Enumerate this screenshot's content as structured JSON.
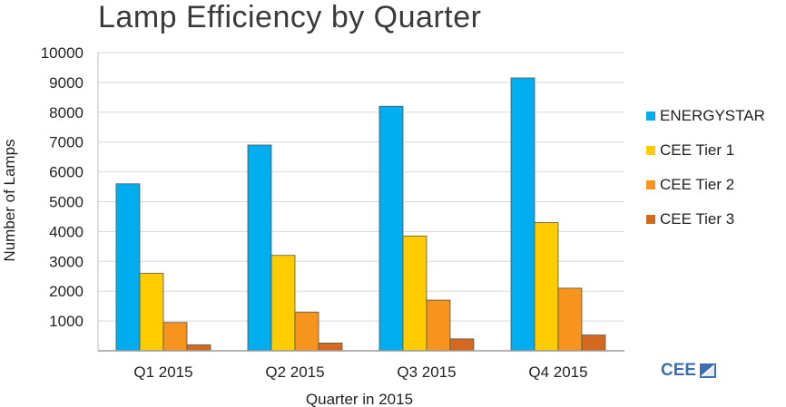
{
  "chart_data": {
    "type": "bar",
    "title": "Lamp Efficiency by Quarter",
    "xlabel": "Quarter in 2015",
    "ylabel": "Number of Lamps",
    "ylim": [
      0,
      10000
    ],
    "yticks": [
      1000,
      2000,
      3000,
      4000,
      5000,
      6000,
      7000,
      8000,
      9000,
      10000
    ],
    "ytick_labels": [
      "1000",
      "2000",
      "3000",
      "4000",
      "5000",
      "6000",
      "7000",
      "8000",
      "9000",
      "10000"
    ],
    "grid": true,
    "legend_position": "right",
    "categories": [
      "Q1 2015",
      "Q2 2015",
      "Q3 2015",
      "Q4 2015"
    ],
    "series": [
      {
        "name": "ENERGYSTAR",
        "color": "#00aeef",
        "values": [
          5600,
          6900,
          8200,
          9150
        ]
      },
      {
        "name": "CEE Tier 1",
        "color": "#ffcc00",
        "values": [
          2600,
          3200,
          3850,
          4300
        ]
      },
      {
        "name": "CEE Tier 2",
        "color": "#f7941d",
        "values": [
          950,
          1300,
          1700,
          2100
        ]
      },
      {
        "name": "CEE Tier 3",
        "color": "#d2691e",
        "values": [
          200,
          260,
          400,
          530
        ]
      }
    ]
  },
  "logo": {
    "text": "CEE",
    "icon": "cee-logo-icon"
  }
}
